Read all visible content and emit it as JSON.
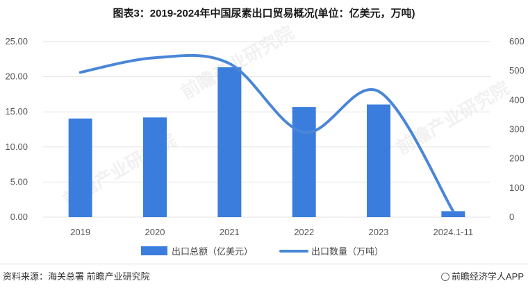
{
  "title": "图表3：2019-2024年中国尿素出口贸易概况(单位：亿美元，万吨)",
  "source": "资料来源：海关总署 前瞻产业研究院",
  "brand": "前瞻经济学人APP",
  "watermark": "前瞻产业研究院",
  "colors": {
    "bar": "#3b7ddd",
    "line": "#4a86d8",
    "grid": "#e3e3e3"
  },
  "chart_data": {
    "type": "bar",
    "categories": [
      "2019",
      "2020",
      "2021",
      "2022",
      "2023",
      "2024.1-11"
    ],
    "series": [
      {
        "name": "出口总额（亿美元）",
        "type": "bar",
        "axis": "left",
        "values": [
          14.05,
          14.2,
          21.35,
          15.7,
          16.05,
          0.85
        ]
      },
      {
        "name": "出口数量（万吨）",
        "type": "line",
        "axis": "right",
        "smooth": true,
        "values": [
          495,
          545,
          525,
          290,
          430,
          20
        ]
      }
    ],
    "y_left": {
      "min": 0,
      "max": 25,
      "step": 5,
      "ticks": [
        "0.00",
        "5.00",
        "10.00",
        "15.00",
        "20.00",
        "25.00"
      ]
    },
    "y_right": {
      "min": 0,
      "max": 600,
      "step": 100,
      "ticks": [
        "0",
        "100",
        "200",
        "300",
        "400",
        "500",
        "600"
      ]
    },
    "grid": true,
    "legend_position": "bottom"
  }
}
